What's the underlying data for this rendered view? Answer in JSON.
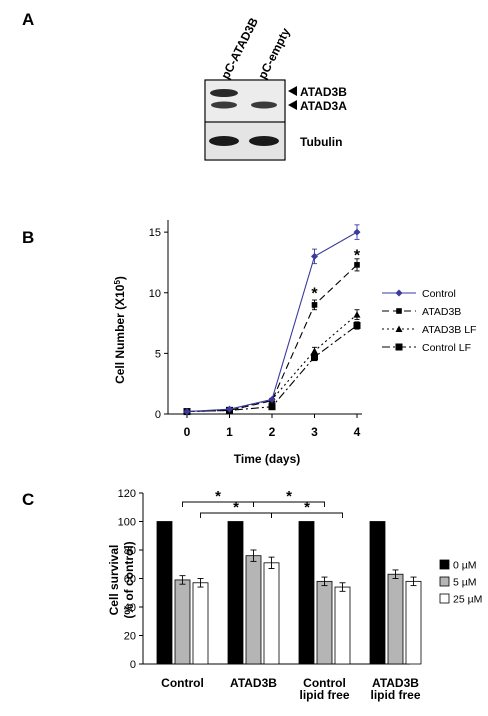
{
  "panels": {
    "a_label": "A",
    "b_label": "B",
    "c_label": "C"
  },
  "blot": {
    "lanes": [
      "pC-ATAD3B",
      "pC-empty"
    ],
    "bands": [
      "ATAD3B",
      "ATAD3A"
    ],
    "loading": "Tubulin"
  },
  "chart_data": [
    {
      "type": "line",
      "xlabel": "Time (days)",
      "ylabel_prefix": "Cell Number (X10",
      "ylabel_sup": "5",
      "ylabel_suffix": ")",
      "x": [
        0,
        1,
        2,
        3,
        4
      ],
      "x_ticks": [
        "0",
        "1",
        "2",
        "3",
        "4"
      ],
      "ylim": [
        0,
        16
      ],
      "y_ticks": [
        "0",
        "5",
        "10",
        "15"
      ],
      "legend_position": "right",
      "series": [
        {
          "name": "Control",
          "values": [
            0.2,
            0.4,
            1.2,
            13.0,
            15.0
          ],
          "errors": [
            0.1,
            0.1,
            0.1,
            0.6,
            0.6
          ],
          "color": "#3a3aa0",
          "dash": "",
          "marker": "diamond"
        },
        {
          "name": "ATAD3B",
          "values": [
            0.2,
            0.3,
            1.1,
            9.0,
            12.3
          ],
          "errors": [
            0.1,
            0.1,
            0.1,
            0.4,
            0.5
          ],
          "color": "#000000",
          "dash": "7,4",
          "marker": "square-small"
        },
        {
          "name": "ATAD3B LF",
          "values": [
            0.2,
            0.3,
            1.2,
            5.2,
            8.2
          ],
          "errors": [
            0.1,
            0.1,
            0.1,
            0.3,
            0.4
          ],
          "color": "#000000",
          "dash": "2,3",
          "marker": "triangle"
        },
        {
          "name": "Control LF",
          "values": [
            0.2,
            0.3,
            0.6,
            4.7,
            7.3
          ],
          "errors": [
            0.1,
            0.1,
            0.1,
            0.3,
            0.3
          ],
          "color": "#000000",
          "dash": "8,3,2,3",
          "marker": "square"
        }
      ],
      "annotations": [
        {
          "x": 3,
          "y": 10.2,
          "text": "*"
        },
        {
          "x": 4,
          "y": 13.3,
          "text": "*"
        }
      ]
    },
    {
      "type": "bar",
      "ylabel_line1": "Cell survival",
      "ylabel_line2": "(% of control)",
      "ylim": [
        0,
        120
      ],
      "y_ticks": [
        "0",
        "20",
        "40",
        "60",
        "80",
        "100",
        "120"
      ],
      "categories": [
        [
          "Control"
        ],
        [
          "ATAD3B"
        ],
        [
          "Control",
          "lipid free"
        ],
        [
          "ATAD3B",
          "lipid free"
        ]
      ],
      "series": [
        {
          "name": "0 µM",
          "values": [
            100,
            100,
            100,
            100
          ],
          "errors": [
            0,
            0,
            0,
            0
          ],
          "color": "#000000"
        },
        {
          "name": "5 µM",
          "values": [
            59,
            76,
            58,
            63
          ],
          "errors": [
            3,
            4,
            3,
            3
          ],
          "color": "#b5b5b5"
        },
        {
          "name": "25 µM",
          "values": [
            57,
            71,
            54,
            58
          ],
          "errors": [
            3,
            4,
            3,
            3
          ],
          "color": "#ffffff"
        }
      ],
      "legend_position": "right",
      "significance": [
        {
          "from": [
            0,
            1
          ],
          "to": [
            1,
            1
          ],
          "level": "upper",
          "text": "*"
        },
        {
          "from": [
            1,
            1
          ],
          "to": [
            2,
            1
          ],
          "level": "upper",
          "text": "*"
        },
        {
          "from": [
            0,
            2
          ],
          "to": [
            1,
            2
          ],
          "level": "lower",
          "text": "*"
        },
        {
          "from": [
            1,
            2
          ],
          "to": [
            2,
            2
          ],
          "level": "lower",
          "text": "*"
        }
      ]
    }
  ]
}
